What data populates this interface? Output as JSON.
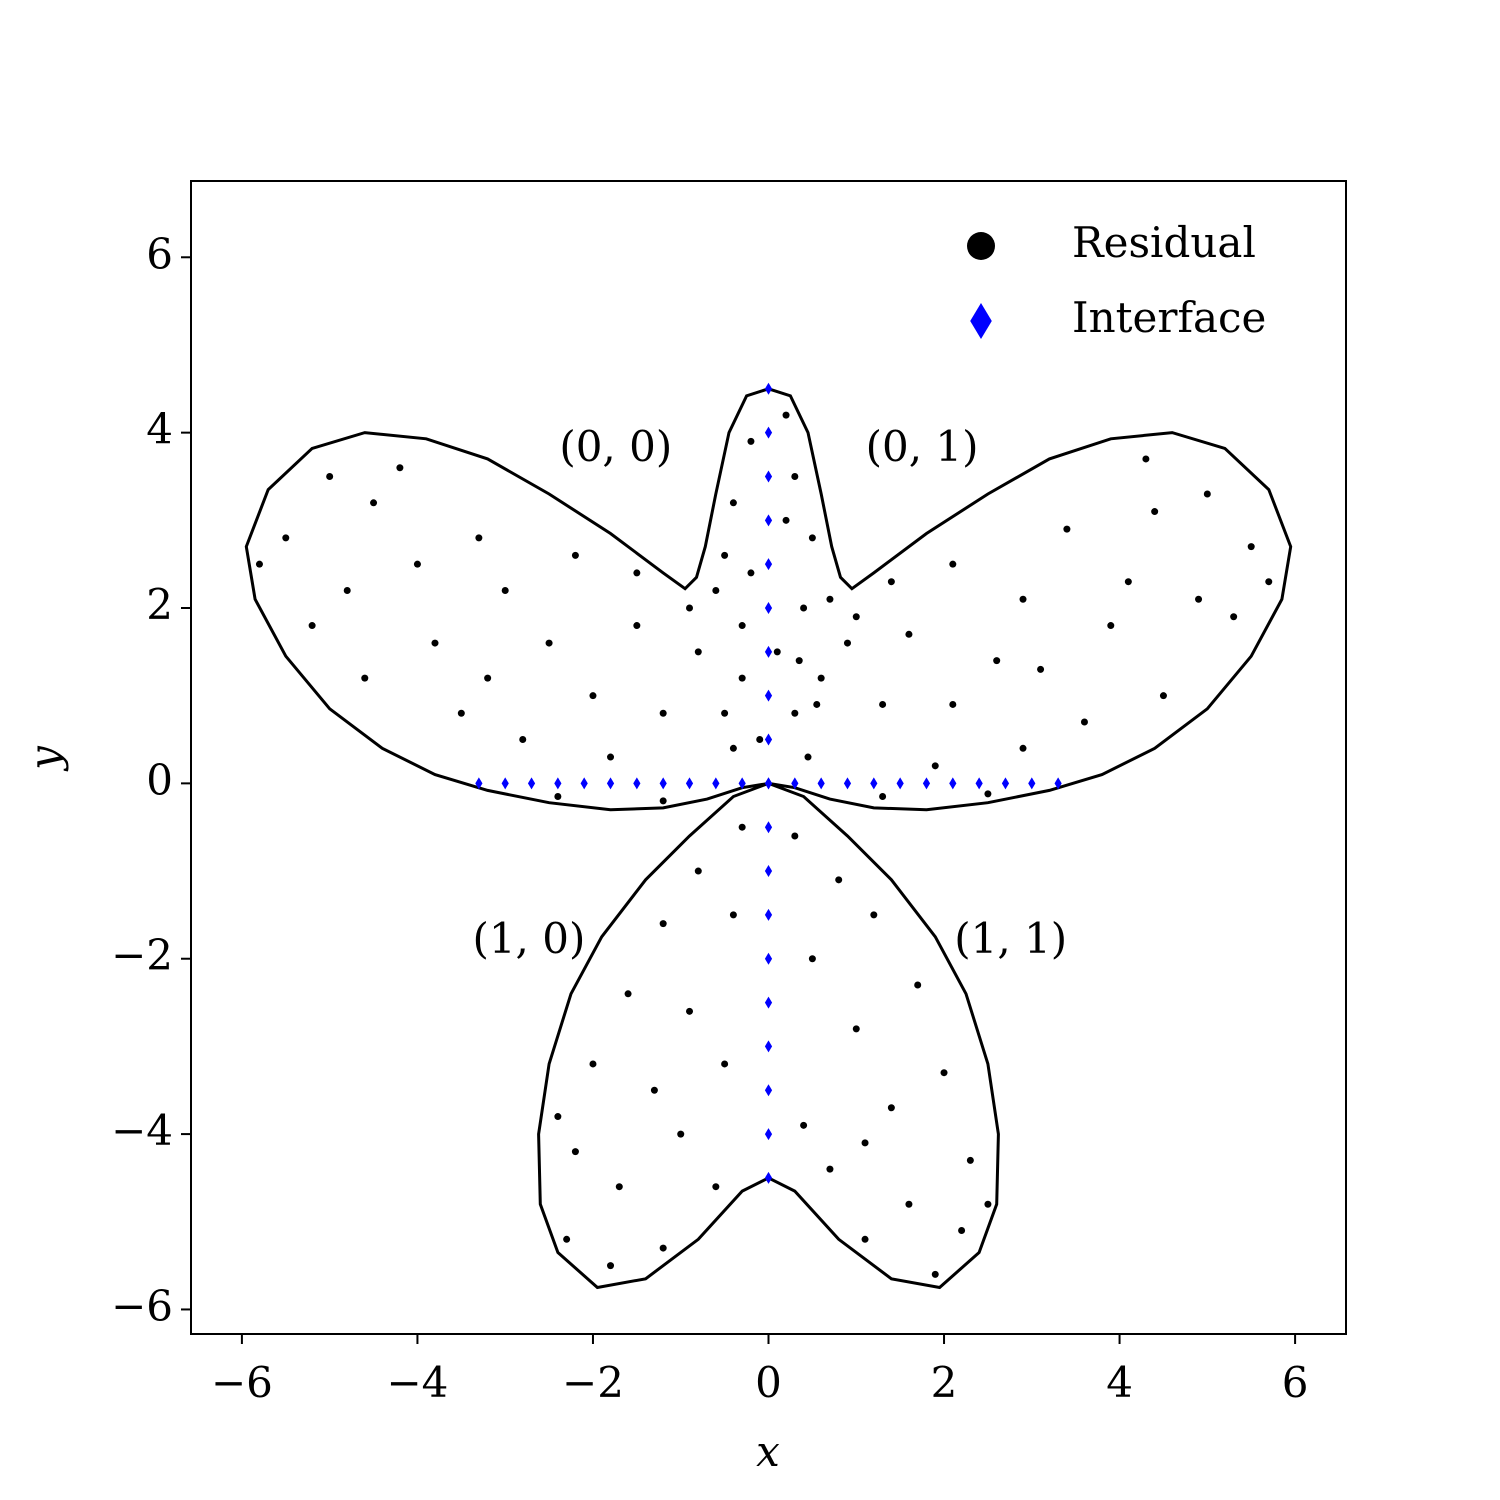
{
  "chart_data": {
    "type": "scatter",
    "xlabel": "x",
    "ylabel": "y",
    "xlim": [
      -6.58,
      6.58
    ],
    "ylim": [
      -6.28,
      6.87
    ],
    "xticks": [
      {
        "value": -6,
        "label": "−6"
      },
      {
        "value": -4,
        "label": "−4"
      },
      {
        "value": -2,
        "label": "−2"
      },
      0,
      2,
      4,
      6
    ],
    "yticks": [
      {
        "value": -6,
        "label": "−6"
      },
      {
        "value": -4,
        "label": "−4"
      },
      {
        "value": -2,
        "label": "−2"
      },
      0,
      2,
      4,
      6
    ],
    "legend": "upper right",
    "boundary": {
      "color": "#000000",
      "x": [
        0,
        0.25,
        0.45,
        0.6,
        0.72,
        0.82,
        0.95,
        1.2,
        1.8,
        2.5,
        3.2,
        3.9,
        4.6,
        5.2,
        5.7,
        5.95,
        5.85,
        5.5,
        5.0,
        4.4,
        3.8,
        3.2,
        2.5,
        1.8,
        1.2,
        0.7,
        0.3,
        0,
        0.4,
        0.9,
        1.4,
        1.9,
        2.25,
        2.5,
        2.62,
        2.6,
        2.4,
        1.95,
        1.4,
        0.8,
        0.3,
        0,
        -0.3,
        -0.8,
        -1.4,
        -1.95,
        -2.4,
        -2.6,
        -2.62,
        -2.5,
        -2.25,
        -1.9,
        -1.4,
        -0.9,
        -0.4,
        0,
        -0.3,
        -0.7,
        -1.2,
        -1.8,
        -2.5,
        -3.2,
        -3.8,
        -4.4,
        -5.0,
        -5.5,
        -5.85,
        -5.95,
        -5.7,
        -5.2,
        -4.6,
        -3.9,
        -3.2,
        -2.5,
        -1.8,
        -1.2,
        -0.95,
        -0.82,
        -0.72,
        -0.6,
        -0.45,
        -0.25
      ],
      "y": [
        4.5,
        4.42,
        4.0,
        3.3,
        2.7,
        2.35,
        2.22,
        2.4,
        2.85,
        3.3,
        3.7,
        3.93,
        4.0,
        3.82,
        3.35,
        2.7,
        2.1,
        1.45,
        0.85,
        0.4,
        0.1,
        -0.08,
        -0.22,
        -0.3,
        -0.28,
        -0.18,
        -0.05,
        0,
        -0.15,
        -0.6,
        -1.1,
        -1.75,
        -2.4,
        -3.2,
        -4.0,
        -4.8,
        -5.35,
        -5.75,
        -5.65,
        -5.2,
        -4.65,
        -4.5,
        -4.65,
        -5.2,
        -5.65,
        -5.75,
        -5.35,
        -4.8,
        -4.0,
        -3.2,
        -2.4,
        -1.75,
        -1.1,
        -0.6,
        -0.15,
        0,
        -0.05,
        -0.18,
        -0.28,
        -0.3,
        -0.22,
        -0.08,
        0.1,
        0.4,
        0.85,
        1.45,
        2.1,
        2.7,
        3.35,
        3.82,
        4.0,
        3.93,
        3.7,
        3.3,
        2.85,
        2.4,
        2.22,
        2.35,
        2.7,
        3.3,
        4.0,
        4.42
      ]
    },
    "series": [
      {
        "name": "Residual",
        "color": "#000000",
        "marker": "circle",
        "x": [
          -5.5,
          -5,
          -4.5,
          -4,
          -5.2,
          -4.6,
          -3.8,
          -3.3,
          -3,
          -2.5,
          -2.2,
          -3.5,
          -2.8,
          -2,
          -1.5,
          -1.2,
          -0.8,
          -0.6,
          -0.9,
          -1.8,
          -2.4,
          -1.2,
          -4.2,
          -5.8,
          -4.8,
          -3.2,
          -1.5,
          -0.5,
          -0.3,
          -0.4,
          5.5,
          5,
          4.4,
          4.1,
          5.3,
          4.5,
          3.9,
          3.4,
          2.9,
          2.6,
          2.1,
          3.6,
          2.9,
          2.1,
          1.6,
          1.3,
          0.9,
          0.7,
          1.0,
          1.9,
          2.5,
          1.3,
          4.3,
          5.7,
          4.9,
          3.1,
          1.4,
          0.55,
          0.35,
          0.45,
          0.2,
          -0.2,
          0.3,
          -0.4,
          0.5,
          -0.5,
          0.2,
          -0.2,
          0.4,
          -0.3,
          0.1,
          0.6,
          0.3,
          -0.1,
          -0.3,
          0.3,
          -0.8,
          0.8,
          -1.2,
          1.2,
          -0.4,
          0.5,
          -1.6,
          1.7,
          -0.9,
          1,
          -2,
          2,
          -1.3,
          1.4,
          -0.5,
          0.4,
          -2.2,
          2.3,
          -1.7,
          1.6,
          -2.3,
          2.2,
          -1.2,
          1.1,
          -1.8,
          1.9,
          -0.6,
          0.7,
          -1,
          1.1,
          -2.4,
          2.5
        ],
        "y": [
          2.8,
          3.5,
          3.2,
          2.5,
          1.8,
          1.2,
          1.6,
          2.8,
          2.2,
          1.6,
          2.6,
          0.8,
          0.5,
          1.0,
          1.8,
          0.8,
          1.5,
          2.2,
          2.0,
          0.3,
          -0.15,
          -0.2,
          3.6,
          2.5,
          2.2,
          1.2,
          2.4,
          0.8,
          1.2,
          0.4,
          2.7,
          3.3,
          3.1,
          2.3,
          1.9,
          1.0,
          1.8,
          2.9,
          2.1,
          1.4,
          2.5,
          0.7,
          0.4,
          0.9,
          1.7,
          0.9,
          1.6,
          2.1,
          1.9,
          0.2,
          -0.12,
          -0.15,
          3.7,
          2.3,
          2.1,
          1.3,
          2.3,
          0.9,
          1.4,
          0.3,
          4.2,
          3.9,
          3.5,
          3.2,
          2.8,
          2.6,
          3.0,
          2.4,
          2.0,
          1.8,
          1.5,
          1.2,
          0.8,
          0.5,
          -0.5,
          -0.6,
          -1,
          -1.1,
          -1.6,
          -1.5,
          -1.5,
          -2,
          -2.4,
          -2.3,
          -2.6,
          -2.8,
          -3.2,
          -3.3,
          -3.5,
          -3.7,
          -3.2,
          -3.9,
          -4.2,
          -4.3,
          -4.6,
          -4.8,
          -5.2,
          -5.1,
          -5.3,
          -5.2,
          -5.5,
          -5.6,
          -4.6,
          -4.4,
          -4,
          -4.1,
          -3.8,
          -4.8
        ]
      },
      {
        "name": "Interface",
        "color": "#0000ff",
        "marker": "diamond",
        "x": [
          -3.3,
          -3.0,
          -2.7,
          -2.4,
          -2.1,
          -1.8,
          -1.5,
          -1.2,
          -0.9,
          -0.6,
          -0.3,
          0,
          0.3,
          0.6,
          0.9,
          1.2,
          1.5,
          1.8,
          2.1,
          2.4,
          2.7,
          3.0,
          3.3,
          0,
          0,
          0,
          0,
          0,
          0,
          0,
          0,
          0,
          0,
          0,
          0,
          0,
          0,
          0,
          0,
          0,
          0,
          0
        ],
        "y": [
          0,
          0,
          0,
          0,
          0,
          0,
          0,
          0,
          0,
          0,
          0,
          0,
          0,
          0,
          0,
          0,
          0,
          0,
          0,
          0,
          0,
          0,
          0,
          -4.5,
          -4.0,
          -3.5,
          -3.0,
          -2.5,
          -2.0,
          -1.5,
          -1.0,
          -0.5,
          0,
          0.5,
          1.0,
          1.5,
          2.0,
          2.5,
          3.0,
          3.5,
          4.0,
          4.5
        ]
      }
    ],
    "annotations": [
      {
        "text": "(0, 0)",
        "x": -1.74,
        "y": 3.8
      },
      {
        "text": "(0, 1)",
        "x": 1.75,
        "y": 3.8
      },
      {
        "text": "(1, 0)",
        "x": -2.73,
        "y": -1.81
      },
      {
        "text": "(1, 1)",
        "x": 2.76,
        "y": -1.81
      }
    ]
  }
}
